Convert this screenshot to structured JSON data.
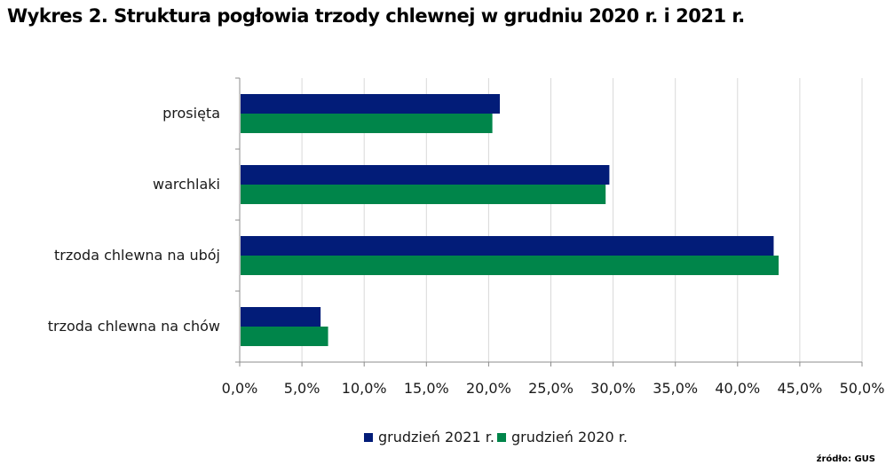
{
  "title": "Wykres 2. Struktura pogłowia trzody chlewnej w grudniu 2020 r. i 2021 r.",
  "source": "źródło: GUS",
  "chart_data": {
    "type": "bar",
    "orientation": "horizontal",
    "categories": [
      "prosięta",
      "warchlaki",
      "trzoda chlewna na ubój",
      "trzoda chlewna na chów"
    ],
    "series": [
      {
        "name": "grudzień 2021 r.",
        "color": "#021c78",
        "values": [
          20.9,
          29.7,
          42.9,
          6.5
        ]
      },
      {
        "name": "grudzień 2020 r.",
        "color": "#00854a",
        "values": [
          20.3,
          29.4,
          43.3,
          7.1
        ]
      }
    ],
    "xlim": [
      0,
      50
    ],
    "xticks": [
      "0,0%",
      "5,0%",
      "10,0%",
      "15,0%",
      "20,0%",
      "25,0%",
      "30,0%",
      "35,0%",
      "40,0%",
      "45,0%",
      "50,0%"
    ],
    "grid": true,
    "legend_position": "bottom",
    "xlabel": "",
    "ylabel": ""
  }
}
